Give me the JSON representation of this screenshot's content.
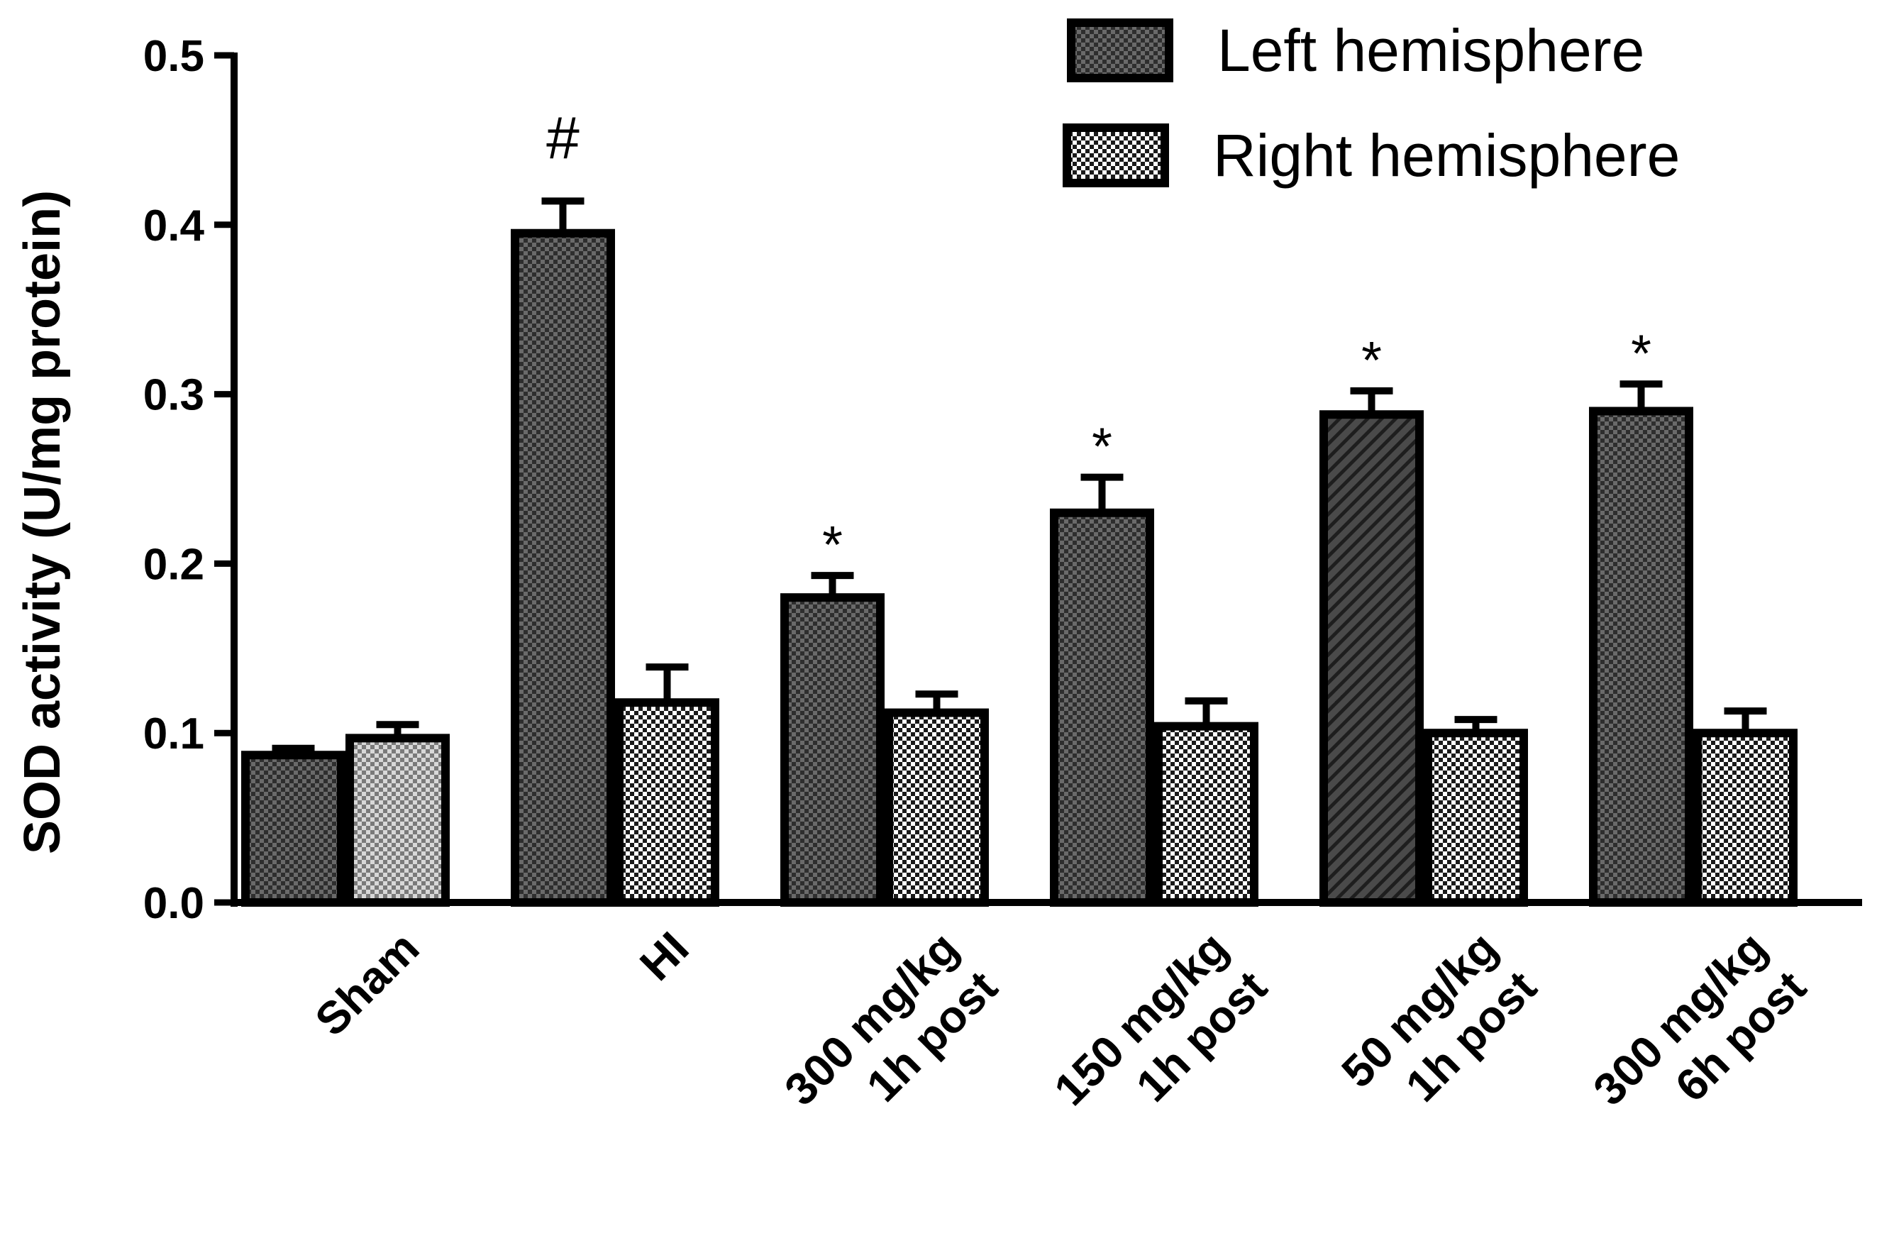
{
  "chart_data": {
    "type": "bar",
    "title": "",
    "ylabel": "SOD activity (U/mg protein)",
    "xlabel": "",
    "ylim": [
      0,
      0.5
    ],
    "yticks": [
      "0.0",
      "0.1",
      "0.2",
      "0.3",
      "0.4",
      "0.5"
    ],
    "categories": [
      [
        "Sham"
      ],
      [
        "HI"
      ],
      [
        "300 mg/kg",
        "1h post"
      ],
      [
        "150 mg/kg",
        "1h post"
      ],
      [
        "50 mg/kg",
        "1h post"
      ],
      [
        "300 mg/kg",
        "6h post"
      ]
    ],
    "series": [
      {
        "name": "Left hemisphere",
        "values": [
          0.087,
          0.395,
          0.18,
          0.23,
          0.288,
          0.29
        ],
        "errors": [
          0.004,
          0.019,
          0.013,
          0.021,
          0.014,
          0.016
        ]
      },
      {
        "name": "Right hemisphere",
        "values": [
          0.097,
          0.118,
          0.112,
          0.104,
          0.1,
          0.1
        ],
        "errors": [
          0.008,
          0.021,
          0.011,
          0.015,
          0.008,
          0.013
        ]
      }
    ],
    "annotations": [
      "",
      "#",
      "*",
      "*",
      "*",
      "*"
    ],
    "legend_position": "top-right",
    "grid": false,
    "colors": {
      "axis": "#000000",
      "left_fill": "#3a3a3a",
      "right_fill": "#ffffff"
    }
  }
}
